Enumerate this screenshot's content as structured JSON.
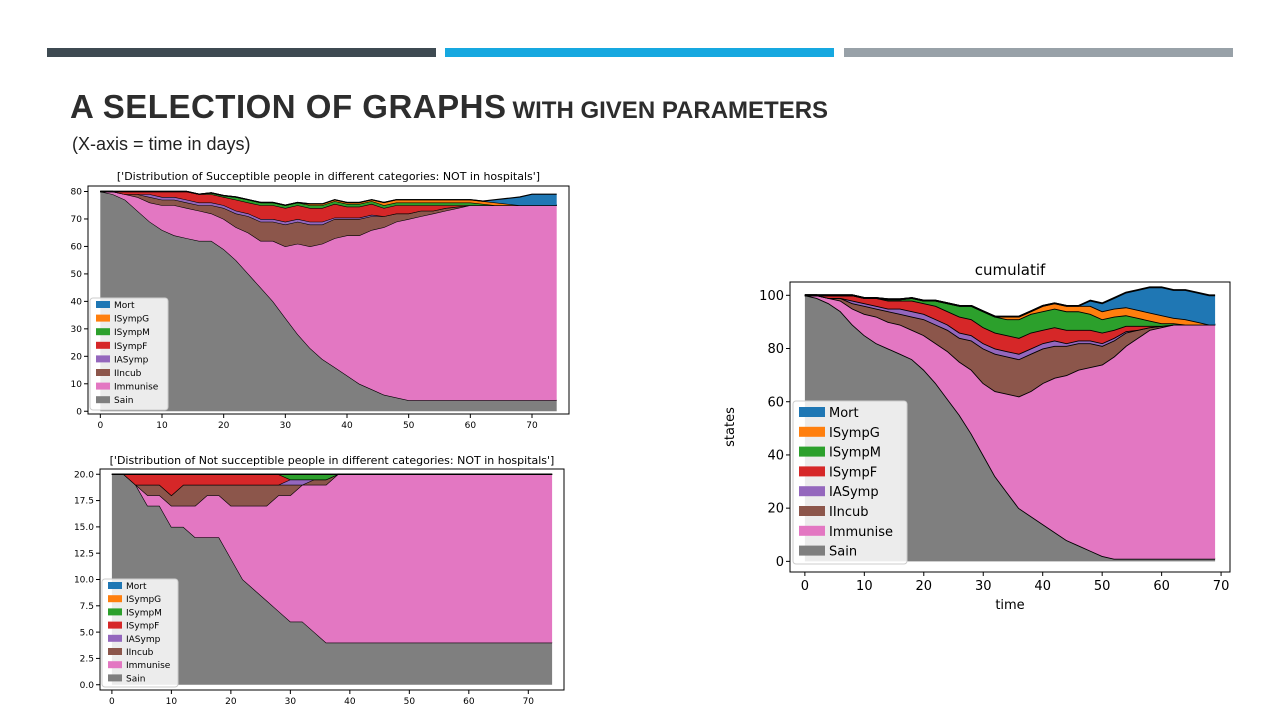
{
  "slide": {
    "title_main": "A SELECTION OF GRAPHS",
    "title_sub": "WITH GIVEN PARAMETERS",
    "subtitle": "(X-axis = time in days)"
  },
  "colors": {
    "Mort": "#1f77b4",
    "ISympG": "#ff7f0e",
    "ISympM": "#2ca02c",
    "ISympF": "#d62728",
    "IASymp": "#9467bd",
    "IIncub": "#8c564b",
    "Immunise": "#e377c2",
    "Sain": "#7f7f7f"
  },
  "chart_data": [
    {
      "type": "area",
      "stacked": true,
      "title": "['Distribution of Succeptible people in different categories: NOT in hospitals']",
      "xlabel": "",
      "ylabel": "",
      "xlim": [
        -2,
        76
      ],
      "ylim": [
        -1,
        82
      ],
      "xticks": [
        0,
        10,
        20,
        30,
        40,
        50,
        60,
        70
      ],
      "yticks": [
        0,
        10,
        20,
        30,
        40,
        50,
        60,
        70,
        80
      ],
      "legend_position": "lower-left",
      "x": [
        0,
        2,
        4,
        6,
        8,
        10,
        12,
        14,
        16,
        18,
        20,
        22,
        24,
        26,
        28,
        30,
        32,
        34,
        36,
        38,
        40,
        42,
        44,
        46,
        48,
        50,
        52,
        54,
        56,
        58,
        60,
        62,
        64,
        66,
        68,
        70,
        72,
        74
      ],
      "series": [
        {
          "name": "Sain",
          "values": [
            80,
            79,
            77,
            73,
            69,
            66,
            64,
            63,
            62,
            62,
            59,
            55,
            50,
            45,
            40,
            34,
            28,
            23,
            19,
            16,
            13,
            10,
            8,
            6,
            5,
            4,
            4,
            4,
            4,
            4,
            4,
            4,
            4,
            4,
            4,
            4,
            4,
            4
          ]
        },
        {
          "name": "Immunise",
          "values": [
            0,
            1,
            2,
            5,
            7,
            9,
            11,
            11,
            11,
            10,
            11,
            12,
            15,
            17,
            22,
            26,
            33,
            37,
            42,
            47,
            51,
            54,
            58,
            61,
            64,
            66,
            67,
            68,
            69,
            70,
            71,
            71,
            71,
            71,
            71,
            71,
            71,
            71
          ]
        },
        {
          "name": "IIncub",
          "values": [
            0,
            0,
            0,
            1,
            2,
            2,
            2,
            2,
            2,
            3,
            4,
            5,
            6,
            7,
            7,
            8,
            8,
            8,
            7,
            7,
            6,
            6,
            5,
            4,
            3,
            2,
            2,
            1,
            1,
            0.5,
            0,
            0,
            0,
            0,
            0,
            0,
            0,
            0
          ]
        },
        {
          "name": "IASymp",
          "values": [
            0,
            0,
            0,
            0,
            1,
            1,
            1,
            1,
            1,
            1,
            1,
            1,
            1,
            1,
            1,
            1,
            1,
            1,
            1,
            0.5,
            0.5,
            0.5,
            0.5,
            0,
            0,
            0,
            0,
            0,
            0,
            0,
            0,
            0,
            0,
            0,
            0,
            0,
            0,
            0
          ]
        },
        {
          "name": "ISympF",
          "values": [
            0,
            0,
            1,
            1,
            1,
            2,
            2,
            3,
            3,
            3,
            3,
            4,
            4,
            5,
            5,
            5,
            5,
            5,
            5,
            5,
            4,
            4,
            4,
            3,
            3,
            3,
            2,
            2,
            1,
            0.5,
            0,
            0,
            0,
            0,
            0,
            0,
            0,
            0
          ]
        },
        {
          "name": "ISympM",
          "values": [
            0,
            0,
            0,
            0,
            0,
            0,
            0,
            0,
            0,
            0.5,
            0.5,
            1,
            1,
            1,
            1,
            1,
            1,
            1,
            1,
            1,
            1,
            1,
            1,
            1,
            1,
            1,
            1,
            1,
            1,
            1,
            1,
            0.5,
            0,
            0,
            0,
            0,
            0,
            0
          ]
        },
        {
          "name": "ISympG",
          "values": [
            0,
            0,
            0,
            0,
            0,
            0,
            0,
            0,
            0,
            0,
            0,
            0,
            0,
            0,
            0,
            0,
            0,
            0.5,
            0.5,
            0.5,
            0.5,
            0.5,
            0.5,
            1,
            1,
            1,
            1,
            1,
            1,
            1,
            1,
            1,
            1,
            0.5,
            0,
            0,
            0,
            0
          ]
        },
        {
          "name": "Mort",
          "values": [
            0,
            0,
            0,
            0,
            0,
            0,
            0,
            0,
            0,
            0,
            0,
            0,
            0,
            0,
            0,
            0,
            0,
            0,
            0,
            0,
            0,
            0,
            0,
            0,
            0,
            0,
            0,
            0,
            0,
            0,
            0,
            0,
            1,
            2,
            3,
            4,
            4,
            4
          ]
        }
      ]
    },
    {
      "type": "area",
      "stacked": true,
      "title": "['Distribution of Not succeptible people  in different categories: NOT in hospitals']",
      "xlabel": "",
      "ylabel": "",
      "xlim": [
        -2,
        76
      ],
      "ylim": [
        -0.5,
        20.5
      ],
      "xticks": [
        0,
        10,
        20,
        30,
        40,
        50,
        60,
        70
      ],
      "yticks": [
        "0.0",
        "2.5",
        "5.0",
        "7.5",
        "10.0",
        "12.5",
        "15.0",
        "17.5",
        "20.0"
      ],
      "legend_position": "lower-left",
      "x": [
        0,
        2,
        4,
        6,
        8,
        10,
        12,
        14,
        16,
        18,
        20,
        22,
        24,
        26,
        28,
        30,
        32,
        34,
        36,
        38,
        40,
        42,
        44,
        46,
        48,
        50,
        52,
        54,
        56,
        58,
        60,
        62,
        64,
        66,
        68,
        70,
        72,
        74
      ],
      "series": [
        {
          "name": "Sain",
          "values": [
            20,
            20,
            19,
            17,
            17,
            15,
            15,
            14,
            14,
            14,
            12,
            10,
            9,
            8,
            7,
            6,
            6,
            5,
            4,
            4,
            4,
            4,
            4,
            4,
            4,
            4,
            4,
            4,
            4,
            4,
            4,
            4,
            4,
            4,
            4,
            4,
            4,
            4
          ]
        },
        {
          "name": "Immunise",
          "values": [
            0,
            0,
            0,
            1,
            1,
            2,
            2,
            3,
            4,
            4,
            5,
            7,
            8,
            9,
            11,
            12,
            13,
            14,
            15,
            16,
            16,
            16,
            16,
            16,
            16,
            16,
            16,
            16,
            16,
            16,
            16,
            16,
            16,
            16,
            16,
            16,
            16,
            16
          ]
        },
        {
          "name": "IIncub",
          "values": [
            0,
            0,
            0,
            1,
            1,
            1,
            2,
            2,
            1,
            1,
            2,
            2,
            2,
            2,
            1,
            1,
            0,
            0.5,
            0.5,
            0,
            0,
            0,
            0,
            0,
            0,
            0,
            0,
            0,
            0,
            0,
            0,
            0,
            0,
            0,
            0,
            0,
            0,
            0
          ]
        },
        {
          "name": "IASymp",
          "values": [
            0,
            0,
            0,
            0,
            0,
            0,
            0,
            0,
            0,
            0,
            0,
            0,
            0,
            0,
            0,
            0.5,
            0.5,
            0,
            0,
            0,
            0,
            0,
            0,
            0,
            0,
            0,
            0,
            0,
            0,
            0,
            0,
            0,
            0,
            0,
            0,
            0,
            0,
            0
          ]
        },
        {
          "name": "ISympF",
          "values": [
            0,
            0,
            1,
            1,
            1,
            2,
            1,
            1,
            1,
            1,
            1,
            1,
            1,
            1,
            1,
            0,
            0,
            0,
            0,
            0,
            0,
            0,
            0,
            0,
            0,
            0,
            0,
            0,
            0,
            0,
            0,
            0,
            0,
            0,
            0,
            0,
            0,
            0
          ]
        },
        {
          "name": "ISympM",
          "values": [
            0,
            0,
            0,
            0,
            0,
            0,
            0,
            0,
            0,
            0,
            0,
            0,
            0,
            0,
            0,
            0.5,
            0.5,
            0.5,
            0.5,
            0,
            0,
            0,
            0,
            0,
            0,
            0,
            0,
            0,
            0,
            0,
            0,
            0,
            0,
            0,
            0,
            0,
            0,
            0
          ]
        },
        {
          "name": "ISympG",
          "values": [
            0,
            0,
            0,
            0,
            0,
            0,
            0,
            0,
            0,
            0,
            0,
            0,
            0,
            0,
            0,
            0,
            0,
            0,
            0,
            0,
            0,
            0,
            0,
            0,
            0,
            0,
            0,
            0,
            0,
            0,
            0,
            0,
            0,
            0,
            0,
            0,
            0,
            0
          ]
        },
        {
          "name": "Mort",
          "values": [
            0,
            0,
            0,
            0,
            0,
            0,
            0,
            0,
            0,
            0,
            0,
            0,
            0,
            0,
            0,
            0,
            0,
            0,
            0,
            0,
            0,
            0,
            0,
            0,
            0,
            0,
            0,
            0,
            0,
            0,
            0,
            0,
            0,
            0,
            0,
            0,
            0,
            0
          ]
        }
      ]
    },
    {
      "type": "area",
      "stacked": true,
      "title": "cumulatif",
      "xlabel": "time",
      "ylabel": "states",
      "xlim": [
        -2.5,
        71.5
      ],
      "ylim": [
        -4,
        105
      ],
      "xticks": [
        0,
        10,
        20,
        30,
        40,
        50,
        60,
        70
      ],
      "yticks": [
        0,
        20,
        40,
        60,
        80,
        100
      ],
      "legend_position": "lower-left",
      "x": [
        0,
        2,
        4,
        6,
        8,
        10,
        12,
        14,
        16,
        18,
        20,
        22,
        24,
        26,
        28,
        30,
        32,
        34,
        36,
        38,
        40,
        42,
        44,
        46,
        48,
        50,
        52,
        54,
        56,
        58,
        60,
        62,
        64,
        66,
        68,
        69
      ],
      "series": [
        {
          "name": "Sain",
          "values": [
            100,
            99,
            97,
            94,
            89,
            85,
            82,
            80,
            78,
            76,
            72,
            67,
            61,
            55,
            48,
            40,
            32,
            26,
            20,
            17,
            14,
            11,
            8,
            6,
            4,
            2,
            1,
            1,
            1,
            1,
            1,
            1,
            1,
            1,
            1,
            1
          ]
        },
        {
          "name": "Immunise",
          "values": [
            0,
            1,
            2,
            4,
            6,
            8,
            10,
            10,
            11,
            11,
            13,
            15,
            18,
            20,
            24,
            27,
            32,
            37,
            42,
            47,
            53,
            58,
            62,
            66,
            69,
            72,
            76,
            80,
            83,
            86,
            87,
            88,
            88,
            88,
            88,
            88
          ]
        },
        {
          "name": "IIncub",
          "values": [
            0,
            0,
            0,
            1,
            2,
            3,
            3,
            4,
            4,
            5,
            6,
            7,
            8,
            9,
            11,
            13,
            14,
            14,
            14,
            14,
            13,
            12,
            11,
            10,
            9,
            7,
            6,
            5,
            3,
            1,
            0.5,
            0,
            0,
            0,
            0,
            0
          ]
        },
        {
          "name": "IASymp",
          "values": [
            0,
            0,
            0,
            0,
            1,
            1,
            1,
            1,
            2,
            2,
            2,
            2,
            2,
            2,
            2,
            2,
            2,
            2,
            2,
            2,
            2,
            2,
            1,
            1,
            1,
            1,
            1,
            0.5,
            0,
            0,
            0,
            0,
            0,
            0,
            0,
            0
          ]
        },
        {
          "name": "ISympF",
          "values": [
            0,
            0,
            1,
            1,
            2,
            2,
            3,
            3,
            3,
            4,
            4,
            5,
            5,
            6,
            6,
            6,
            6,
            6,
            6,
            6,
            5,
            5,
            5,
            4,
            4,
            4,
            3,
            2,
            1.5,
            0.5,
            0,
            0,
            0,
            0,
            0,
            0
          ]
        },
        {
          "name": "ISympM",
          "values": [
            0,
            0,
            0,
            0,
            0,
            0,
            0,
            0.5,
            0.5,
            1,
            1,
            2,
            3,
            4,
            5,
            6,
            6,
            6,
            7,
            7,
            7,
            7,
            7,
            7,
            6,
            5,
            5,
            4,
            3,
            2,
            1,
            0.5,
            0,
            0,
            0,
            0
          ]
        },
        {
          "name": "ISympG",
          "values": [
            0,
            0,
            0,
            0,
            0,
            0,
            0,
            0,
            0,
            0,
            0,
            0,
            0,
            0,
            0,
            0,
            0,
            1,
            1,
            1,
            2,
            2,
            2,
            2,
            3,
            3,
            3,
            3,
            3,
            3,
            3,
            2,
            2,
            1,
            0,
            0
          ]
        },
        {
          "name": "Mort",
          "values": [
            0,
            0,
            0,
            0,
            0,
            0,
            0,
            0,
            0,
            0,
            0,
            0,
            0,
            0,
            0,
            0,
            0,
            0,
            0,
            0,
            0,
            0,
            0,
            0,
            2,
            3,
            4,
            5.5,
            7.5,
            9.5,
            10.5,
            10.5,
            11,
            11,
            11,
            11
          ]
        }
      ]
    }
  ]
}
